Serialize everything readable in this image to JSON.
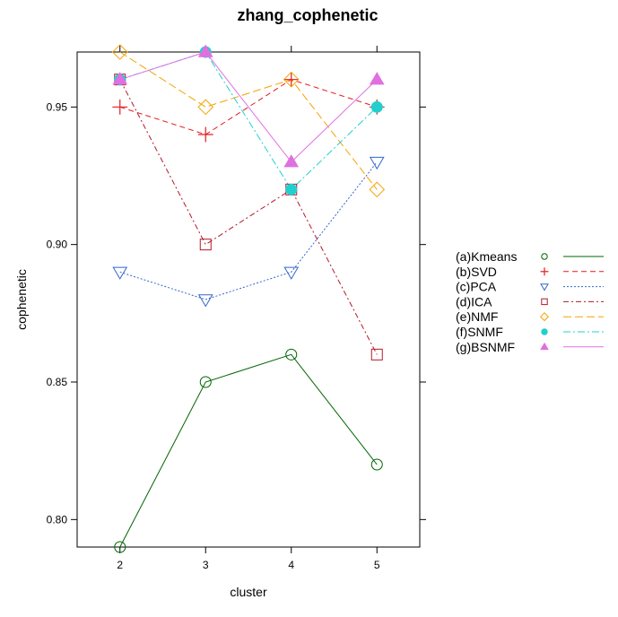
{
  "chart_data": {
    "type": "line",
    "title": "zhang_cophenetic",
    "xlabel": "cluster",
    "ylabel": "cophenetic",
    "x": [
      2,
      3,
      4,
      5
    ],
    "xlim": [
      1.5,
      5.5
    ],
    "ylim": [
      0.79,
      0.97
    ],
    "xticks": [
      "2",
      "3",
      "4",
      "5"
    ],
    "yticks": [
      "0.80",
      "0.85",
      "0.90",
      "0.95"
    ],
    "legend_position": "right",
    "series": [
      {
        "name": "(a)Kmeans",
        "values": [
          0.79,
          0.85,
          0.86,
          0.82
        ],
        "color": "#006400",
        "marker": "circle",
        "dash": ""
      },
      {
        "name": "(b)SVD",
        "values": [
          0.95,
          0.94,
          0.96,
          0.95
        ],
        "color": "#e31a1c",
        "marker": "plus",
        "dash": "6,4"
      },
      {
        "name": "(c)PCA",
        "values": [
          0.89,
          0.88,
          0.89,
          0.93
        ],
        "color": "#3366cc",
        "marker": "triangle-down",
        "dash": "2,2"
      },
      {
        "name": "(d)ICA",
        "values": [
          0.96,
          0.9,
          0.92,
          0.86
        ],
        "color": "#b2182b",
        "marker": "square",
        "dash": "6,3,2,3"
      },
      {
        "name": "(e)NMF",
        "values": [
          0.97,
          0.95,
          0.96,
          0.92
        ],
        "color": "#f5a300",
        "marker": "diamond",
        "dash": "9,4"
      },
      {
        "name": "(f)SNMF",
        "values": [
          0.96,
          0.97,
          0.92,
          0.95
        ],
        "color": "#20d0cf",
        "marker": "filled-circle",
        "dash": "8,3,2,3"
      },
      {
        "name": "(g)BSNMF",
        "values": [
          0.96,
          0.97,
          0.93,
          0.96
        ],
        "color": "#e070e0",
        "marker": "filled-triangle",
        "dash": ""
      }
    ]
  }
}
